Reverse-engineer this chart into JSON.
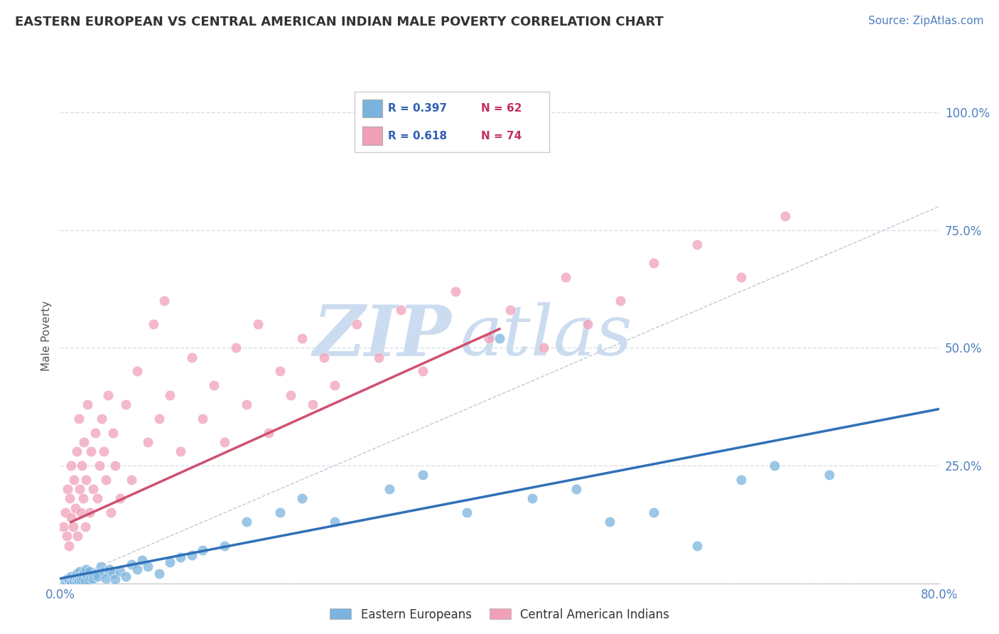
{
  "title": "EASTERN EUROPEAN VS CENTRAL AMERICAN INDIAN MALE POVERTY CORRELATION CHART",
  "source_text": "Source: ZipAtlas.com",
  "ylabel": "Male Poverty",
  "xlim": [
    0.0,
    0.8
  ],
  "ylim": [
    0.0,
    1.05
  ],
  "x_tick_labels": [
    "0.0%",
    "80.0%"
  ],
  "y_ticks_right": [
    0.0,
    0.25,
    0.5,
    0.75,
    1.0
  ],
  "y_tick_labels_right": [
    "",
    "25.0%",
    "50.0%",
    "75.0%",
    "100.0%"
  ],
  "blue_color": "#7ab4de",
  "pink_color": "#f0a0b8",
  "blue_line_color": "#3070b8",
  "pink_line_color": "#d05070",
  "grid_color": "#d8e0ec",
  "background_color": "#ffffff",
  "watermark_color": "#ccdcf0",
  "legend_label_blue": "Eastern Europeans",
  "legend_label_pink": "Central American Indians",
  "blue_trend_x": [
    0.0,
    0.8
  ],
  "blue_trend_y": [
    0.01,
    0.37
  ],
  "pink_trend_x": [
    0.01,
    0.4
  ],
  "pink_trend_y": [
    0.13,
    0.54
  ],
  "ref_line_x": [
    0.0,
    1.0
  ],
  "ref_line_y": [
    0.0,
    1.0
  ],
  "blue_scatter_x": [
    0.005,
    0.007,
    0.008,
    0.01,
    0.01,
    0.012,
    0.013,
    0.014,
    0.015,
    0.015,
    0.016,
    0.017,
    0.018,
    0.018,
    0.019,
    0.02,
    0.021,
    0.022,
    0.023,
    0.024,
    0.025,
    0.026,
    0.027,
    0.028,
    0.03,
    0.031,
    0.033,
    0.035,
    0.037,
    0.04,
    0.042,
    0.045,
    0.048,
    0.05,
    0.055,
    0.06,
    0.065,
    0.07,
    0.075,
    0.08,
    0.09,
    0.1,
    0.11,
    0.12,
    0.13,
    0.15,
    0.17,
    0.2,
    0.22,
    0.25,
    0.3,
    0.33,
    0.37,
    0.4,
    0.43,
    0.47,
    0.5,
    0.54,
    0.58,
    0.62,
    0.65,
    0.7
  ],
  "blue_scatter_y": [
    0.005,
    0.01,
    0.008,
    0.003,
    0.015,
    0.008,
    0.006,
    0.012,
    0.004,
    0.02,
    0.01,
    0.007,
    0.015,
    0.025,
    0.008,
    0.018,
    0.012,
    0.022,
    0.006,
    0.03,
    0.015,
    0.005,
    0.025,
    0.012,
    0.01,
    0.018,
    0.02,
    0.015,
    0.035,
    0.025,
    0.01,
    0.03,
    0.02,
    0.008,
    0.025,
    0.015,
    0.04,
    0.03,
    0.05,
    0.035,
    0.02,
    0.045,
    0.055,
    0.06,
    0.07,
    0.08,
    0.13,
    0.15,
    0.18,
    0.13,
    0.2,
    0.23,
    0.15,
    0.52,
    0.18,
    0.2,
    0.13,
    0.15,
    0.08,
    0.22,
    0.25,
    0.23
  ],
  "pink_scatter_x": [
    0.003,
    0.005,
    0.006,
    0.007,
    0.008,
    0.009,
    0.01,
    0.01,
    0.012,
    0.013,
    0.014,
    0.015,
    0.016,
    0.017,
    0.018,
    0.019,
    0.02,
    0.021,
    0.022,
    0.023,
    0.024,
    0.025,
    0.027,
    0.028,
    0.03,
    0.032,
    0.034,
    0.036,
    0.038,
    0.04,
    0.042,
    0.044,
    0.046,
    0.048,
    0.05,
    0.055,
    0.06,
    0.065,
    0.07,
    0.08,
    0.085,
    0.09,
    0.095,
    0.1,
    0.11,
    0.12,
    0.13,
    0.14,
    0.15,
    0.16,
    0.17,
    0.18,
    0.19,
    0.2,
    0.21,
    0.22,
    0.23,
    0.24,
    0.25,
    0.27,
    0.29,
    0.31,
    0.33,
    0.36,
    0.39,
    0.41,
    0.44,
    0.46,
    0.48,
    0.51,
    0.54,
    0.58,
    0.62,
    0.66
  ],
  "pink_scatter_y": [
    0.12,
    0.15,
    0.1,
    0.2,
    0.08,
    0.18,
    0.14,
    0.25,
    0.12,
    0.22,
    0.16,
    0.28,
    0.1,
    0.35,
    0.2,
    0.15,
    0.25,
    0.18,
    0.3,
    0.12,
    0.22,
    0.38,
    0.15,
    0.28,
    0.2,
    0.32,
    0.18,
    0.25,
    0.35,
    0.28,
    0.22,
    0.4,
    0.15,
    0.32,
    0.25,
    0.18,
    0.38,
    0.22,
    0.45,
    0.3,
    0.55,
    0.35,
    0.6,
    0.4,
    0.28,
    0.48,
    0.35,
    0.42,
    0.3,
    0.5,
    0.38,
    0.55,
    0.32,
    0.45,
    0.4,
    0.52,
    0.38,
    0.48,
    0.42,
    0.55,
    0.48,
    0.58,
    0.45,
    0.62,
    0.52,
    0.58,
    0.5,
    0.65,
    0.55,
    0.6,
    0.68,
    0.72,
    0.65,
    0.78
  ]
}
